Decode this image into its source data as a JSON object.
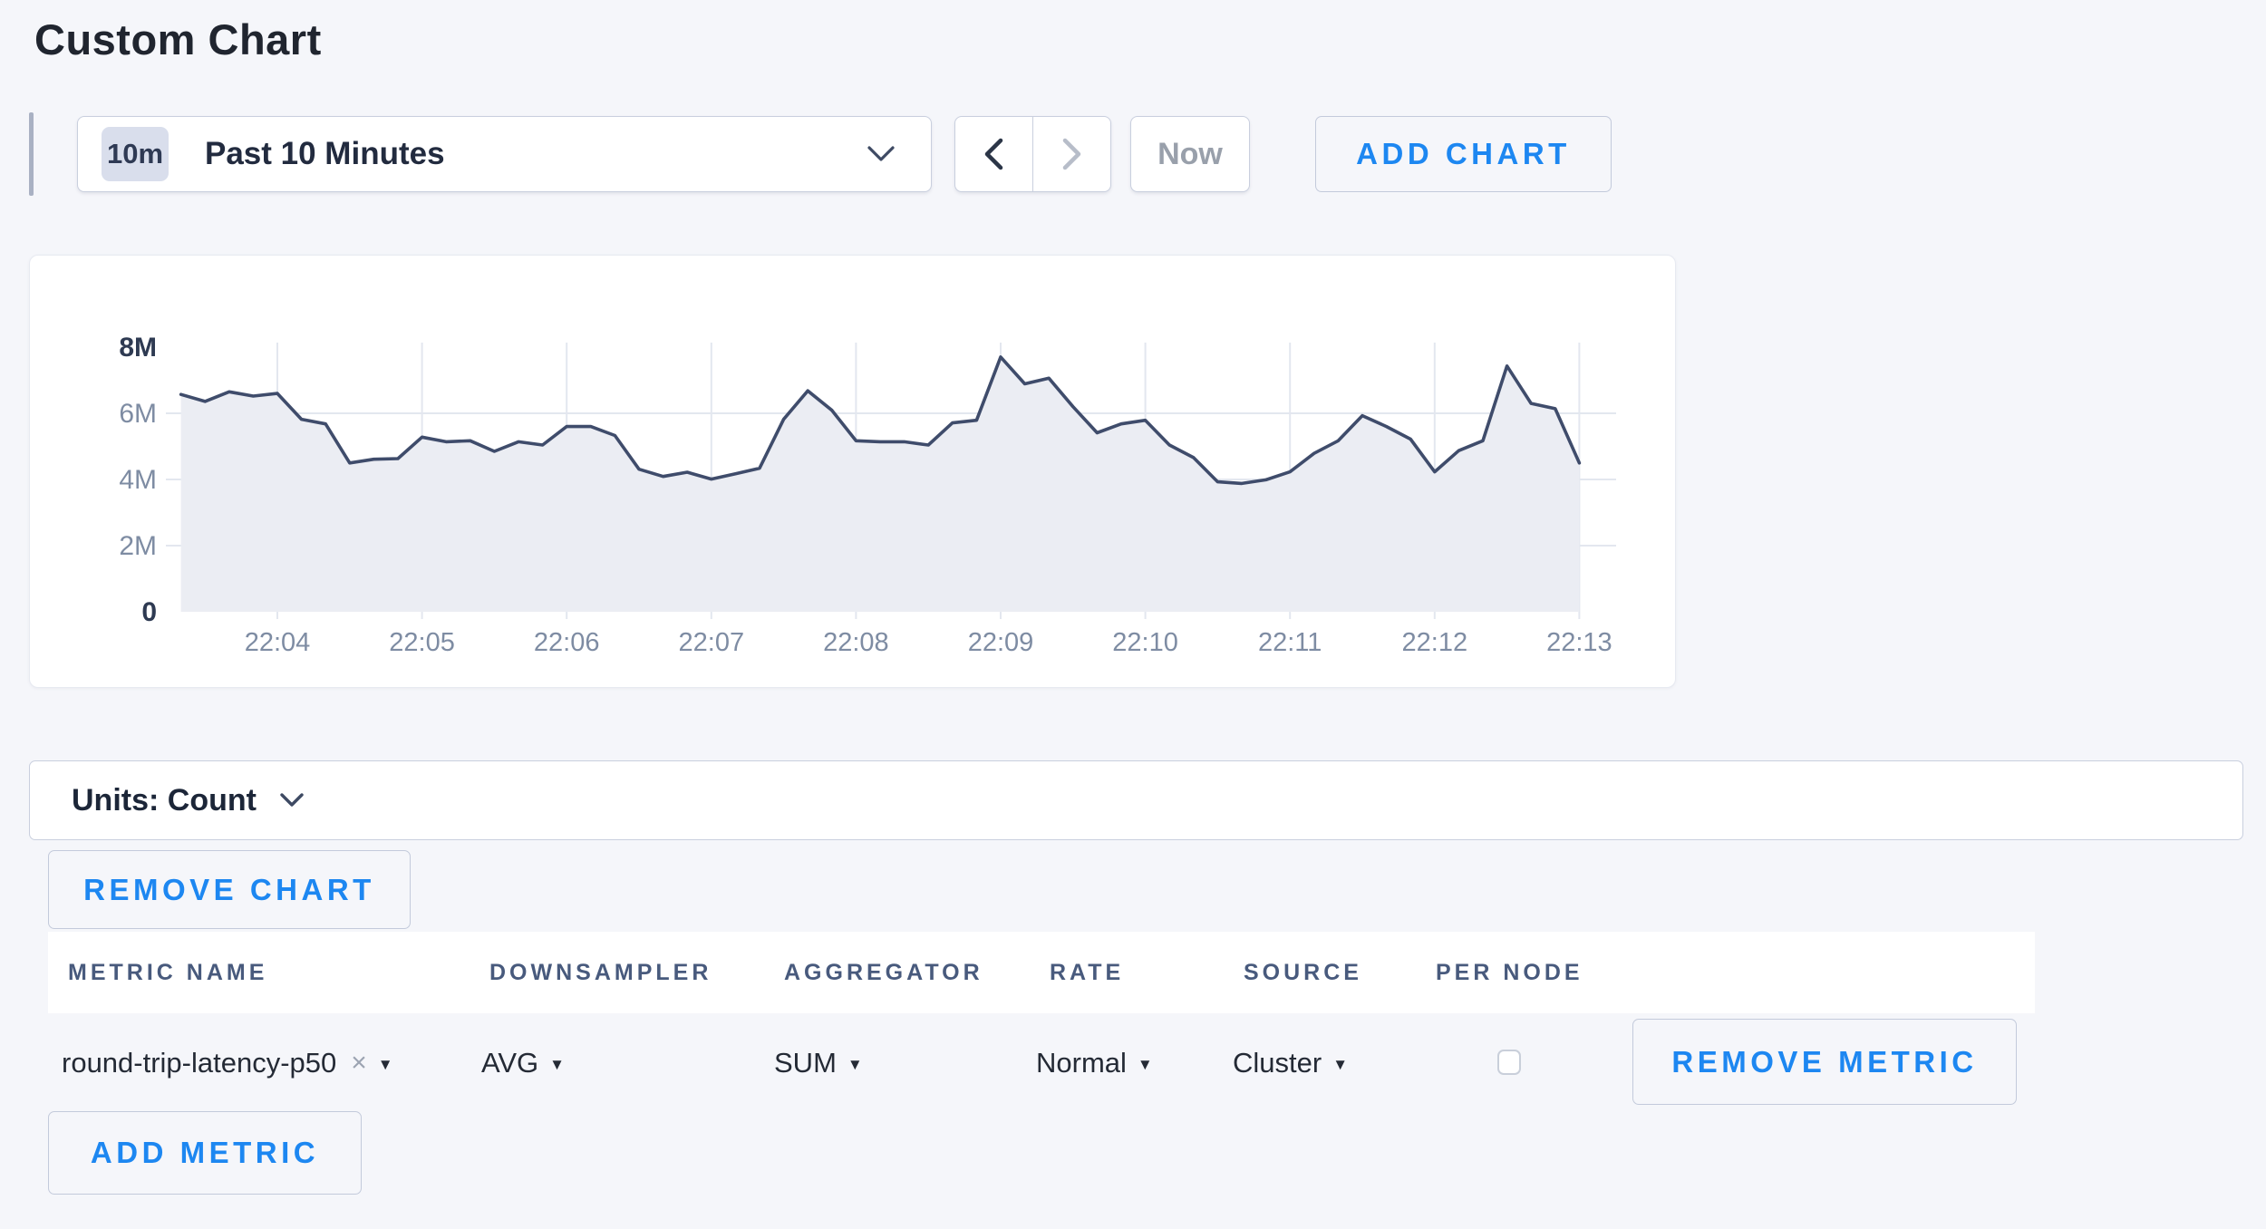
{
  "page": {
    "title": "Custom Chart"
  },
  "toolbar": {
    "time_window": {
      "badge": "10m",
      "label": "Past 10 Minutes"
    },
    "now_label": "Now",
    "add_chart_label": "ADD CHART"
  },
  "units_bar": {
    "label": "Units: Count"
  },
  "remove_chart_label": "REMOVE CHART",
  "colors": {
    "accent_blue": "#1d87f1",
    "line": "#3f4c6b",
    "area_fill": "#ebedf3",
    "grid": "#e3e7ef",
    "axis_label": "#7e8ca3",
    "axis_label_bold": "#2e3a52",
    "page_bg": "#f5f6fa"
  },
  "chart_data": {
    "type": "area",
    "title": "",
    "series": [
      {
        "name": "round-trip-latency-p50 (SUM of AVG, Cluster)",
        "unit": "count",
        "start_time": "22:03:20",
        "interval_seconds": 10,
        "values_millions": [
          6.57,
          6.36,
          6.65,
          6.52,
          6.6,
          5.82,
          5.68,
          4.5,
          4.61,
          4.63,
          5.28,
          5.14,
          5.17,
          4.85,
          5.14,
          5.04,
          5.6,
          5.6,
          5.33,
          4.31,
          4.09,
          4.22,
          4.01,
          4.17,
          4.34,
          5.82,
          6.68,
          6.09,
          5.17,
          5.14,
          5.14,
          5.04,
          5.71,
          5.79,
          7.7,
          6.89,
          7.06,
          6.2,
          5.41,
          5.68,
          5.79,
          5.04,
          4.66,
          3.93,
          3.88,
          3.99,
          4.23,
          4.79,
          5.17,
          5.93,
          5.6,
          5.22,
          4.23,
          4.87,
          5.17,
          7.43,
          6.3,
          6.14,
          4.5
        ]
      }
    ],
    "x_tick_labels": [
      "22:04",
      "22:05",
      "22:06",
      "22:07",
      "22:08",
      "22:09",
      "22:10",
      "22:11",
      "22:12",
      "22:13"
    ],
    "y_tick_labels": [
      "0",
      "2M",
      "4M",
      "6M",
      "8M"
    ],
    "ylim": [
      0,
      8000000
    ],
    "grid": true,
    "legend": "none"
  },
  "metrics_table": {
    "columns": [
      "METRIC NAME",
      "DOWNSAMPLER",
      "AGGREGATOR",
      "RATE",
      "SOURCE",
      "PER NODE"
    ],
    "rows": [
      {
        "metric_name": "round-trip-latency-p50",
        "clear_icon": "×",
        "downsampler": "AVG",
        "aggregator": "SUM",
        "rate": "Normal",
        "source": "Cluster",
        "per_node_checked": false,
        "remove_label": "REMOVE METRIC"
      }
    ],
    "add_metric_label": "ADD METRIC"
  }
}
